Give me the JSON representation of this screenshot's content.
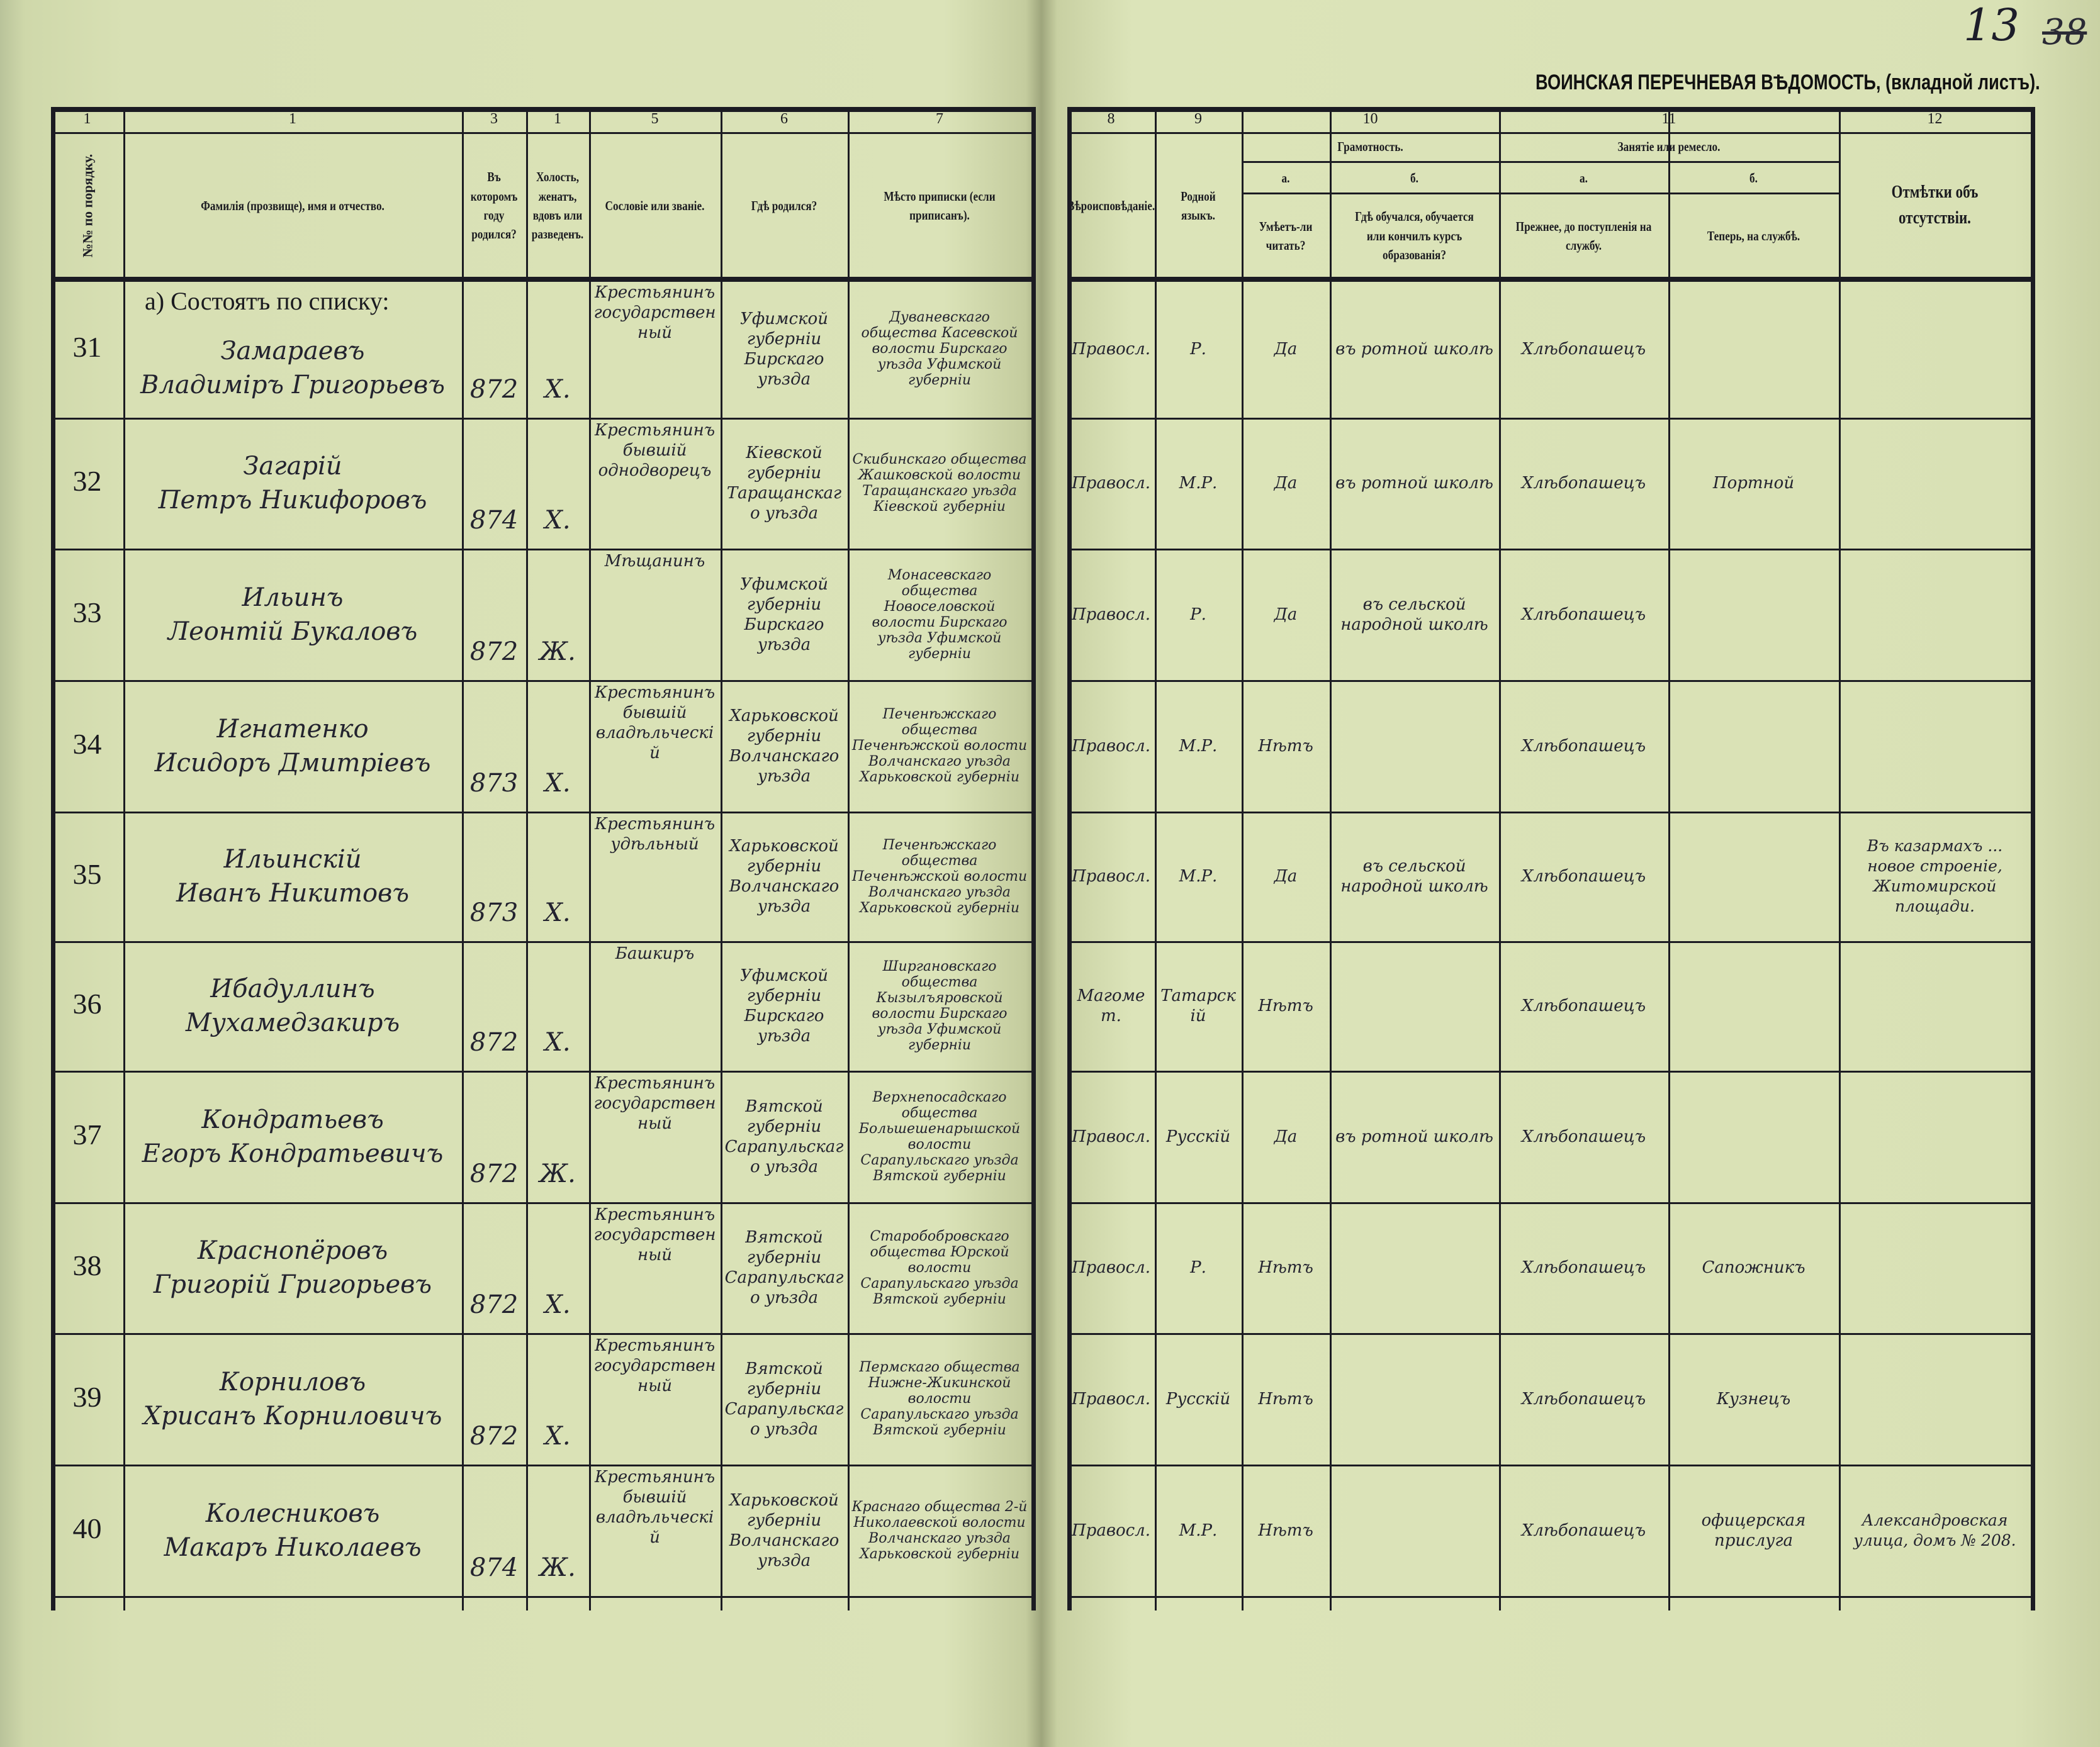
{
  "document": {
    "title": "ВОИНСКАЯ ПЕРЕЧНЕВАЯ ВѢДОМОСТЬ, (вкладной листъ).",
    "page_number": "13",
    "page_number_crossed": "38"
  },
  "left_header": {
    "col_numbers": [
      "1",
      "1",
      "3",
      "1",
      "5",
      "6",
      "7"
    ],
    "order_no": "№№ по порядку.",
    "name": "Фамилія (прозвище), имя и отчество.",
    "birth_year": "Въ которомъ году родился?",
    "marital": "Холость, женатъ, вдовъ или разведенъ.",
    "estate": "Сословіе или званіе.",
    "born_where": "Гдѣ родился?",
    "registered": "Мѣсто приписки (если приписанъ)."
  },
  "right_header": {
    "col_numbers": [
      "8",
      "9",
      "10",
      "11",
      "12"
    ],
    "religion": "Вѣроисповѣданіе.",
    "native_language": "Родной языкъ.",
    "literacy_group": "Грамотность.",
    "literacy_a": "а.",
    "literacy_b": "б.",
    "can_read": "Умѣетъ-ли читать?",
    "where_studied": "Гдѣ обучался, обучается или кончилъ курсъ образованія?",
    "occupation_group": "Занятіе или ремесло.",
    "occupation_a": "а.",
    "occupation_b": "б.",
    "prior_occupation": "Прежнее, до поступленія на службу.",
    "current_occupation": "Теперь, на службѣ.",
    "absence_notes": "Отмѣтки объ отсутствіи."
  },
  "section_label": "а) Состоятъ по списку:",
  "rows": [
    {
      "no": "31",
      "surname": "Замараевъ",
      "given": "Владимiръ Григорьевъ",
      "birth_year": "872",
      "marital": "Х.",
      "estate": "Крестьянинъ государственный",
      "born_where": "Уфимской губернiи Бирскаго уѣзда",
      "registered": "Дуваневскаго общества Касевской волости Бирскаго уѣзда Уфимской губернiи",
      "religion": "Правосл.",
      "language": "Р.",
      "can_read": "Да",
      "studied": "въ ротной школѣ",
      "prior": "Хлѣбопашецъ",
      "current": "",
      "notes": ""
    },
    {
      "no": "32",
      "surname": "Загарiй",
      "given": "Петръ Никифоровъ",
      "birth_year": "874",
      "marital": "Х.",
      "estate": "Крестьянинъ бывшiй однодворецъ",
      "born_where": "Кiевской губернiи Таращанскаго уѣзда",
      "registered": "Скибинскаго общества Жашковской волости Таращанскаго уѣзда Кiевской губернiи",
      "religion": "Правосл.",
      "language": "М.Р.",
      "can_read": "Да",
      "studied": "въ ротной школѣ",
      "prior": "Хлѣбопашецъ",
      "current": "Портной",
      "notes": ""
    },
    {
      "no": "33",
      "surname": "Ильинъ",
      "given": "Леонтiй Букаловъ",
      "birth_year": "872",
      "marital": "Ж.",
      "estate": "Мѣщанинъ",
      "born_where": "Уфимской губернiи Бирскаго уѣзда",
      "registered": "Монасевскаго общества Новоселовской волости Бирскаго уѣзда Уфимской губернiи",
      "religion": "Правосл.",
      "language": "Р.",
      "can_read": "Да",
      "studied": "въ сельской народной школѣ",
      "prior": "Хлѣбопашецъ",
      "current": "",
      "notes": ""
    },
    {
      "no": "34",
      "surname": "Игнатенко",
      "given": "Исидоръ Дмитрiевъ",
      "birth_year": "873",
      "marital": "Х.",
      "estate": "Крестьянинъ бывшiй владѣльческiй",
      "born_where": "Харьковской губернiи Волчанскаго уѣзда",
      "registered": "Печенѣжскаго общества Печенѣжской волости Волчанскаго уѣзда Харьковской губернiи",
      "religion": "Правосл.",
      "language": "М.Р.",
      "can_read": "Нѣтъ",
      "studied": "",
      "prior": "Хлѣбопашецъ",
      "current": "",
      "notes": ""
    },
    {
      "no": "35",
      "surname": "Ильинскiй",
      "given": "Иванъ Никитовъ",
      "birth_year": "873",
      "marital": "Х.",
      "estate": "Крестьянинъ удѣльный",
      "born_where": "Харьковской губернiи Волчанскаго уѣзда",
      "registered": "Печенѣжскаго общества Печенѣжской волости Волчанскаго уѣзда Харьковской губернiи",
      "religion": "Правосл.",
      "language": "М.Р.",
      "can_read": "Да",
      "studied": "въ сельской народной школѣ",
      "prior": "Хлѣбопашецъ",
      "current": "",
      "notes": "Въ казармахъ ... новое строенiе, Житомирской площади."
    },
    {
      "no": "36",
      "surname": "Ибадуллинъ",
      "given": "Мухамедзакиръ",
      "birth_year": "872",
      "marital": "Х.",
      "estate": "Башкиръ",
      "born_where": "Уфимской губернiи Бирскаго уѣзда",
      "registered": "Ширгановскаго общества Кызылъяровской волости Бирскаго уѣзда Уфимской губернiи",
      "religion": "Магомет.",
      "language": "Татарскiй",
      "can_read": "Нѣтъ",
      "studied": "",
      "prior": "Хлѣбопашецъ",
      "current": "",
      "notes": ""
    },
    {
      "no": "37",
      "surname": "Кондратьевъ",
      "given": "Егоръ Кондратьевичъ",
      "birth_year": "872",
      "marital": "Ж.",
      "estate": "Крестьянинъ государственный",
      "born_where": "Вятской губернiи Сарапульскаго уѣзда",
      "registered": "Верхнепосадскаго общества Большешенарышской волости Сарапульскаго уѣзда Вятской губернiи",
      "religion": "Правосл.",
      "language": "Русскiй",
      "can_read": "Да",
      "studied": "въ ротной школѣ",
      "prior": "Хлѣбопашецъ",
      "current": "",
      "notes": ""
    },
    {
      "no": "38",
      "surname": "Краснопёровъ",
      "given": "Григорiй Григорьевъ",
      "birth_year": "872",
      "marital": "Х.",
      "estate": "Крестьянинъ государственный",
      "born_where": "Вятской губернiи Сарапульскаго уѣзда",
      "registered": "Старобобровскаго общества Юрской волости Сарапульскаго уѣзда Вятской губернiи",
      "religion": "Правосл.",
      "language": "Р.",
      "can_read": "Нѣтъ",
      "studied": "",
      "prior": "Хлѣбопашецъ",
      "current": "Сапожникъ",
      "notes": ""
    },
    {
      "no": "39",
      "surname": "Корниловъ",
      "given": "Хрисанъ Корниловичъ",
      "birth_year": "872",
      "marital": "Х.",
      "estate": "Крестьянинъ государственный",
      "born_where": "Вятской губернiи Сарапульскаго уѣзда",
      "registered": "Пермскаго общества Нижне-Жикинской волости Сарапульскаго уѣзда Вятской губернiи",
      "religion": "Правосл.",
      "language": "Русскiй",
      "can_read": "Нѣтъ",
      "studied": "",
      "prior": "Хлѣбопашецъ",
      "current": "Кузнецъ",
      "notes": ""
    },
    {
      "no": "40",
      "surname": "Колесниковъ",
      "given": "Макаръ Николаевъ",
      "birth_year": "874",
      "marital": "Ж.",
      "estate": "Крестьянинъ бывшiй владѣльческiй",
      "born_where": "Харьковской губернiи Волчанскаго уѣзда",
      "registered": "Краснаго общества 2-й Николаевской волости Волчанскаго уѣзда Харьковской губернiи",
      "religion": "Правосл.",
      "language": "М.Р.",
      "can_read": "Нѣтъ",
      "studied": "",
      "prior": "Хлѣбопашецъ",
      "current": "офицерская прислуга",
      "notes": "Александровская улица, домъ № 208."
    }
  ]
}
